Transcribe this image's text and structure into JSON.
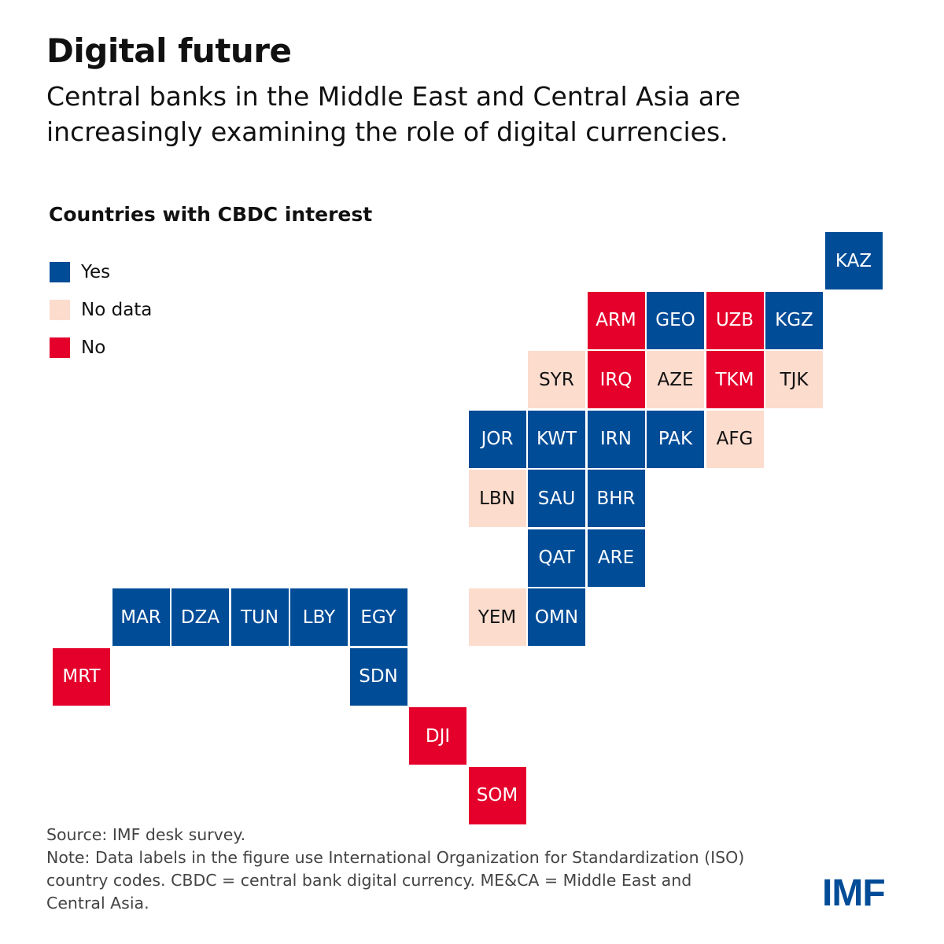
{
  "title": "Digital future",
  "subtitle": "Central banks in the Middle East and Central Asia are increasingly examining the role of digital currencies.",
  "chart_data": {
    "type": "tile-map",
    "title": "Countries with CBDC interest",
    "legend": [
      {
        "key": "yes",
        "label": "Yes",
        "color": "#004c97"
      },
      {
        "key": "nodata",
        "label": "No data",
        "color": "#fcdccd"
      },
      {
        "key": "no",
        "label": "No",
        "color": "#e4002b"
      }
    ],
    "legend_placement": "top-left",
    "countries": [
      {
        "code": "KAZ",
        "status": "yes"
      },
      {
        "code": "ARM",
        "status": "no"
      },
      {
        "code": "GEO",
        "status": "yes"
      },
      {
        "code": "UZB",
        "status": "no"
      },
      {
        "code": "KGZ",
        "status": "yes"
      },
      {
        "code": "SYR",
        "status": "nodata"
      },
      {
        "code": "IRQ",
        "status": "no"
      },
      {
        "code": "AZE",
        "status": "nodata"
      },
      {
        "code": "TKM",
        "status": "no"
      },
      {
        "code": "TJK",
        "status": "nodata"
      },
      {
        "code": "JOR",
        "status": "yes"
      },
      {
        "code": "KWT",
        "status": "yes"
      },
      {
        "code": "IRN",
        "status": "yes"
      },
      {
        "code": "PAK",
        "status": "yes"
      },
      {
        "code": "AFG",
        "status": "nodata"
      },
      {
        "code": "LBN",
        "status": "nodata"
      },
      {
        "code": "SAU",
        "status": "yes"
      },
      {
        "code": "BHR",
        "status": "yes"
      },
      {
        "code": "QAT",
        "status": "yes"
      },
      {
        "code": "ARE",
        "status": "yes"
      },
      {
        "code": "MAR",
        "status": "yes"
      },
      {
        "code": "DZA",
        "status": "yes"
      },
      {
        "code": "TUN",
        "status": "yes"
      },
      {
        "code": "LBY",
        "status": "yes"
      },
      {
        "code": "EGY",
        "status": "yes"
      },
      {
        "code": "YEM",
        "status": "nodata"
      },
      {
        "code": "OMN",
        "status": "yes"
      },
      {
        "code": "MRT",
        "status": "no"
      },
      {
        "code": "SDN",
        "status": "yes"
      },
      {
        "code": "DJI",
        "status": "no"
      },
      {
        "code": "SOM",
        "status": "no"
      }
    ]
  },
  "footer": {
    "source": "Source: IMF desk survey.",
    "note": "Note: Data labels in the figure use International Organization for Standardization (ISO) country codes. CBDC = central bank digital currency. ME&CA = Middle East and Central Asia."
  },
  "logo": "IMF"
}
